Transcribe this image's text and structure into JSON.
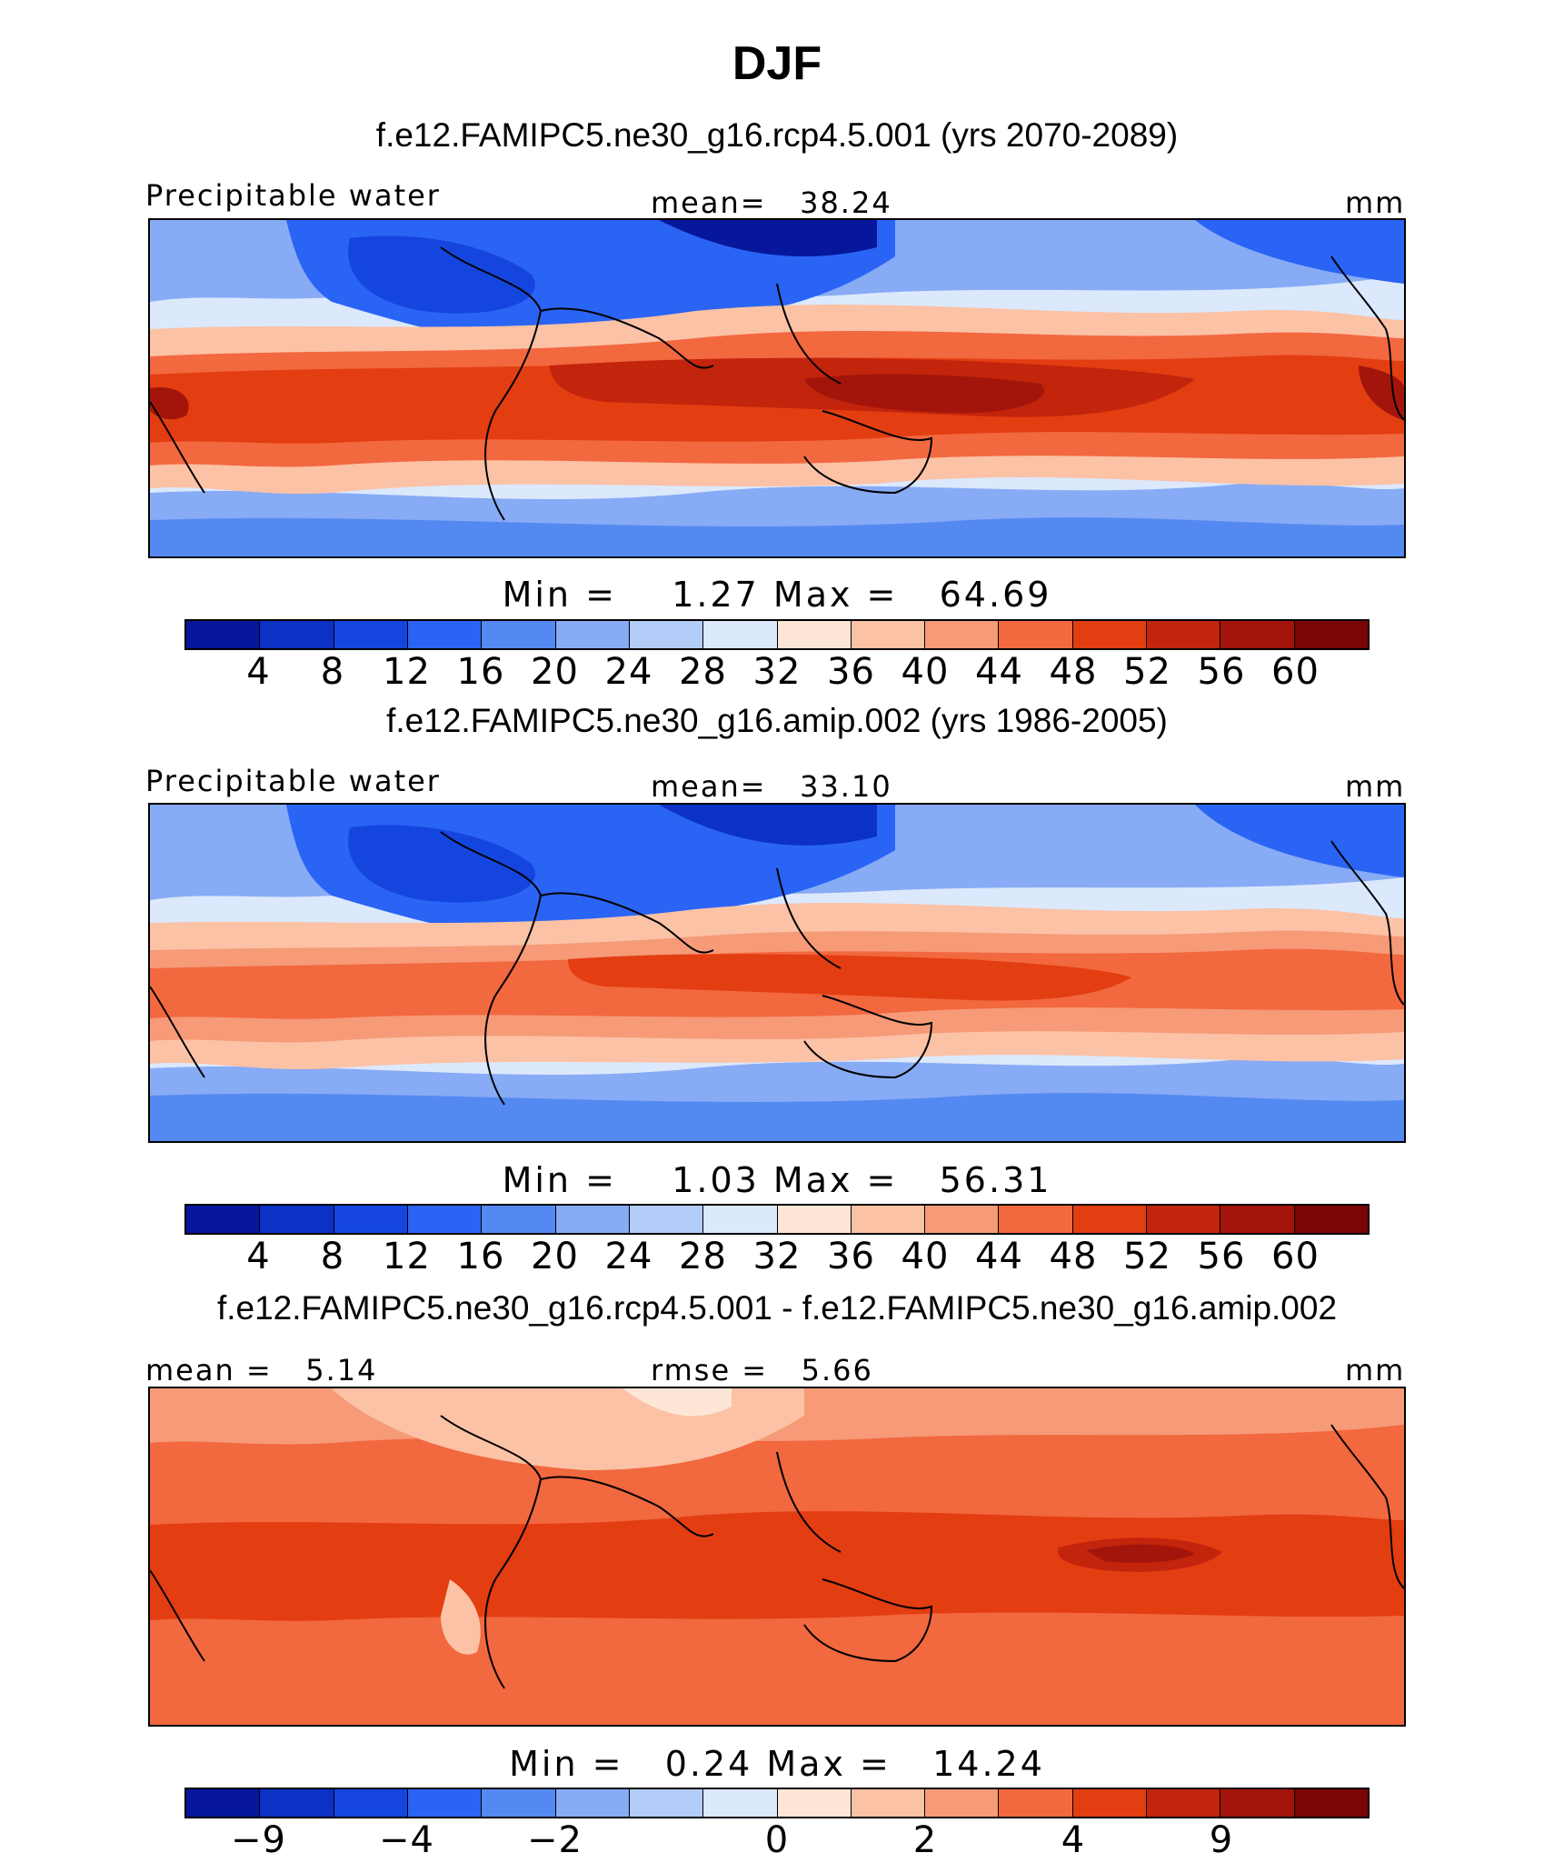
{
  "title": "DJF",
  "palette": [
    "#06179c",
    "#0b32c5",
    "#1446df",
    "#2a64f5",
    "#5589f2",
    "#87abf5",
    "#b3ccf8",
    "#dce8fb",
    "#fde6d6",
    "#fbc2a6",
    "#f69a78",
    "#f2683f",
    "#e33d12",
    "#c2250c",
    "#a3150a",
    "#7a0505"
  ],
  "panels": [
    {
      "case_title": "f.e12.FAMIPC5.ne30_g16.rcp4.5.001 (yrs 2070-2089)",
      "left_label": "Precipitable water",
      "center_label": "mean=   38.24",
      "right_label": "mm",
      "min_max": "Min =    1.27 Max =   64.69",
      "colorbar_ticks": [
        "4",
        "8",
        "12",
        "16",
        "20",
        "24",
        "28",
        "32",
        "36",
        "40",
        "44",
        "48",
        "52",
        "56",
        "60"
      ]
    },
    {
      "case_title": "f.e12.FAMIPC5.ne30_g16.amip.002 (yrs 1986-2005)",
      "left_label": "Precipitable water",
      "center_label": "mean=   33.10",
      "right_label": "mm",
      "min_max": "Min =    1.03 Max =   56.31",
      "colorbar_ticks": [
        "4",
        "8",
        "12",
        "16",
        "20",
        "24",
        "28",
        "32",
        "36",
        "40",
        "44",
        "48",
        "52",
        "56",
        "60"
      ]
    },
    {
      "case_title": "f.e12.FAMIPC5.ne30_g16.rcp4.5.001 - f.e12.FAMIPC5.ne30_g16.amip.002",
      "left_label": "mean =   5.14",
      "center_label": "rmse =   5.66",
      "right_label": "mm",
      "min_max": "Min =   0.24 Max =   14.24",
      "colorbar_ticks": [
        "−9",
        "−4",
        "−2",
        "0",
        "2",
        "4",
        "9"
      ]
    }
  ]
}
